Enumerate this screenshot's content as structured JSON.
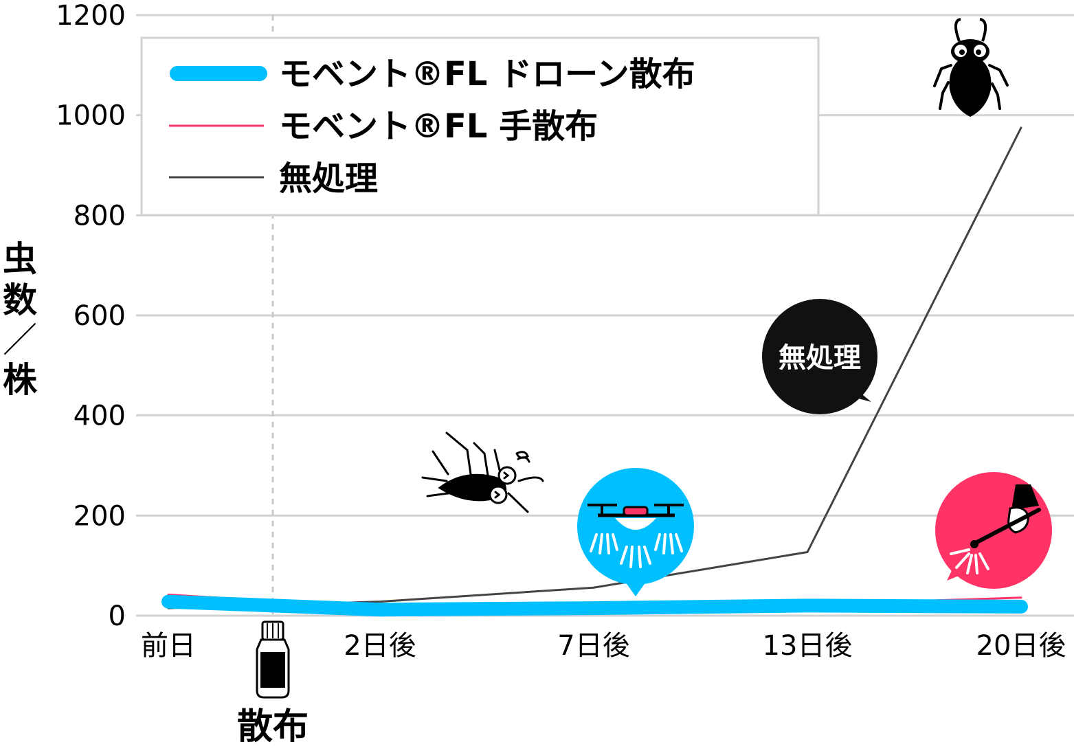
{
  "chart_data": {
    "type": "line",
    "categories": [
      "前日",
      "2日後",
      "7日後",
      "13日後",
      "20日後"
    ],
    "ylabel": "虫数／株",
    "ylim": [
      0,
      1200
    ],
    "yticks": [
      0,
      200,
      400,
      600,
      800,
      1000,
      1200
    ],
    "grid": true,
    "legend_position": "top-left",
    "series": [
      {
        "name": "モベント®FL ドローン散布",
        "color": "#00BFFF",
        "values": [
          28,
          12,
          15,
          20,
          18
        ]
      },
      {
        "name": "モベント®FL 手散布",
        "color": "#FF3366",
        "values": [
          42,
          16,
          18,
          22,
          36
        ]
      },
      {
        "name": "無処理",
        "color": "#444444",
        "values": [
          15,
          28,
          56,
          127,
          975
        ]
      }
    ],
    "spray_marker": {
      "label": "散布"
    },
    "bubbles": {
      "untreated": {
        "text": "無処理",
        "color": "#111111"
      },
      "drone": {
        "color": "#00BFFF",
        "icon": "drone-icon"
      },
      "hand": {
        "color": "#FF3366",
        "icon": "hand-sprayer-icon"
      }
    },
    "icons": [
      "dead-bug-icon",
      "bug-icon",
      "bottle-icon"
    ]
  }
}
